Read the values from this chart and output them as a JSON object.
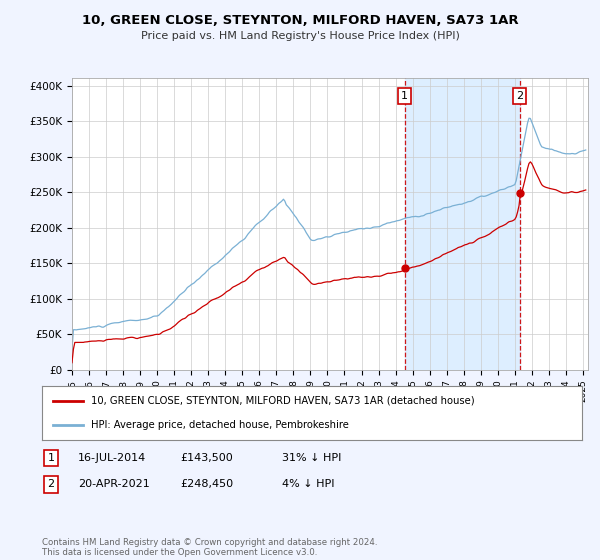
{
  "title": "10, GREEN CLOSE, STEYNTON, MILFORD HAVEN, SA73 1AR",
  "subtitle": "Price paid vs. HM Land Registry's House Price Index (HPI)",
  "ylabel_ticks": [
    "£0",
    "£50K",
    "£100K",
    "£150K",
    "£200K",
    "£250K",
    "£300K",
    "£350K",
    "£400K"
  ],
  "ytick_values": [
    0,
    50000,
    100000,
    150000,
    200000,
    250000,
    300000,
    350000,
    400000
  ],
  "ylim": [
    0,
    410000
  ],
  "xlim_start": 1995.0,
  "xlim_end": 2025.3,
  "sale1_date": 2014.54,
  "sale1_price": 143500,
  "sale1_label": "1",
  "sale2_date": 2021.29,
  "sale2_price": 248450,
  "sale2_label": "2",
  "red_color": "#cc0000",
  "blue_color": "#7ab0d4",
  "shade_color": "#ddeeff",
  "background_color": "#f0f4ff",
  "plot_bg_color": "#ffffff",
  "legend_line1": "10, GREEN CLOSE, STEYNTON, MILFORD HAVEN, SA73 1AR (detached house)",
  "legend_line2": "HPI: Average price, detached house, Pembrokeshire",
  "footer": "Contains HM Land Registry data © Crown copyright and database right 2024.\nThis data is licensed under the Open Government Licence v3.0.",
  "xtick_years": [
    1995,
    1996,
    1997,
    1998,
    1999,
    2000,
    2001,
    2002,
    2003,
    2004,
    2005,
    2006,
    2007,
    2008,
    2009,
    2010,
    2011,
    2012,
    2013,
    2014,
    2015,
    2016,
    2017,
    2018,
    2019,
    2020,
    2021,
    2022,
    2023,
    2024,
    2025
  ]
}
